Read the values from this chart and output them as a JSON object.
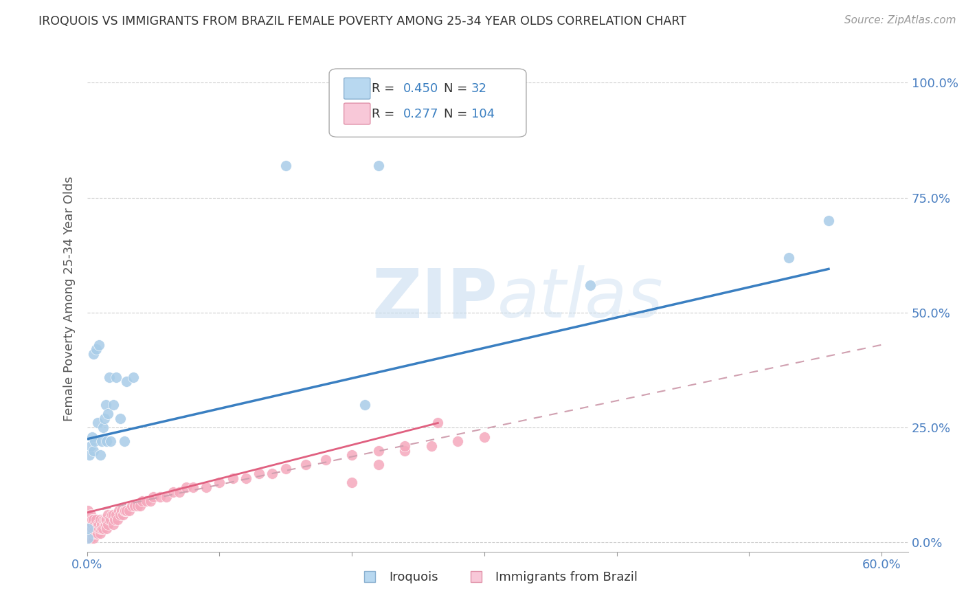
{
  "title": "IROQUOIS VS IMMIGRANTS FROM BRAZIL FEMALE POVERTY AMONG 25-34 YEAR OLDS CORRELATION CHART",
  "source": "Source: ZipAtlas.com",
  "ylabel": "Female Poverty Among 25-34 Year Olds",
  "xlim": [
    0.0,
    0.62
  ],
  "ylim": [
    -0.02,
    1.08
  ],
  "legend1_R": "0.450",
  "legend1_N": "32",
  "legend2_R": "0.277",
  "legend2_N": "104",
  "iroquois_color": "#a8cce8",
  "brazil_color": "#f5a8bc",
  "iroquois_line_color": "#3a7fc1",
  "brazil_line_color": "#e06080",
  "brazil_dash_color": "#d0a0b0",
  "watermark_color": "#dde8f0",
  "background_color": "#ffffff",
  "grid_color": "#cccccc",
  "legend_box_color_1": "#b8d8f0",
  "legend_box_color_2": "#f8c8d8",
  "tick_label_color": "#4a7fc1",
  "axis_label_color": "#555555",
  "iroquois_x": [
    0.001,
    0.001,
    0.002,
    0.003,
    0.004,
    0.005,
    0.005,
    0.006,
    0.007,
    0.008,
    0.009,
    0.01,
    0.011,
    0.012,
    0.013,
    0.014,
    0.015,
    0.016,
    0.017,
    0.018,
    0.02,
    0.022,
    0.025,
    0.028,
    0.03,
    0.035,
    0.15,
    0.21,
    0.22,
    0.38,
    0.53,
    0.56
  ],
  "iroquois_y": [
    0.01,
    0.03,
    0.19,
    0.21,
    0.23,
    0.2,
    0.41,
    0.22,
    0.42,
    0.26,
    0.43,
    0.19,
    0.22,
    0.25,
    0.27,
    0.3,
    0.22,
    0.28,
    0.36,
    0.22,
    0.3,
    0.36,
    0.27,
    0.22,
    0.35,
    0.36,
    0.82,
    0.3,
    0.82,
    0.56,
    0.62,
    0.7
  ],
  "brazil_x": [
    0.0,
    0.0,
    0.001,
    0.001,
    0.001,
    0.001,
    0.001,
    0.001,
    0.001,
    0.001,
    0.002,
    0.002,
    0.002,
    0.002,
    0.002,
    0.003,
    0.003,
    0.003,
    0.003,
    0.003,
    0.003,
    0.004,
    0.004,
    0.004,
    0.004,
    0.005,
    0.005,
    0.005,
    0.005,
    0.006,
    0.006,
    0.006,
    0.007,
    0.007,
    0.007,
    0.008,
    0.008,
    0.008,
    0.009,
    0.009,
    0.01,
    0.01,
    0.01,
    0.011,
    0.011,
    0.012,
    0.012,
    0.013,
    0.013,
    0.014,
    0.014,
    0.015,
    0.015,
    0.016,
    0.016,
    0.017,
    0.018,
    0.019,
    0.02,
    0.02,
    0.021,
    0.022,
    0.023,
    0.024,
    0.025,
    0.026,
    0.027,
    0.028,
    0.029,
    0.03,
    0.032,
    0.034,
    0.036,
    0.038,
    0.04,
    0.042,
    0.045,
    0.048,
    0.05,
    0.055,
    0.06,
    0.065,
    0.07,
    0.075,
    0.08,
    0.09,
    0.1,
    0.11,
    0.12,
    0.13,
    0.14,
    0.15,
    0.165,
    0.18,
    0.2,
    0.22,
    0.24,
    0.26,
    0.28,
    0.3,
    0.2,
    0.22,
    0.24,
    0.265
  ],
  "brazil_y": [
    0.01,
    0.02,
    0.01,
    0.01,
    0.02,
    0.02,
    0.03,
    0.04,
    0.05,
    0.07,
    0.01,
    0.02,
    0.03,
    0.04,
    0.05,
    0.01,
    0.01,
    0.02,
    0.03,
    0.04,
    0.06,
    0.02,
    0.03,
    0.04,
    0.05,
    0.01,
    0.02,
    0.03,
    0.05,
    0.02,
    0.03,
    0.04,
    0.02,
    0.03,
    0.05,
    0.02,
    0.03,
    0.04,
    0.03,
    0.04,
    0.02,
    0.03,
    0.05,
    0.03,
    0.04,
    0.03,
    0.05,
    0.04,
    0.05,
    0.04,
    0.05,
    0.03,
    0.05,
    0.04,
    0.06,
    0.05,
    0.05,
    0.06,
    0.04,
    0.06,
    0.05,
    0.06,
    0.05,
    0.07,
    0.06,
    0.07,
    0.06,
    0.07,
    0.07,
    0.07,
    0.07,
    0.08,
    0.08,
    0.08,
    0.08,
    0.09,
    0.09,
    0.09,
    0.1,
    0.1,
    0.1,
    0.11,
    0.11,
    0.12,
    0.12,
    0.12,
    0.13,
    0.14,
    0.14,
    0.15,
    0.15,
    0.16,
    0.17,
    0.18,
    0.19,
    0.2,
    0.2,
    0.21,
    0.22,
    0.23,
    0.13,
    0.17,
    0.21,
    0.26
  ],
  "iroq_line": [
    0.0,
    0.56,
    0.225,
    0.595
  ],
  "brazil_line_solid": [
    0.0,
    0.265,
    0.065,
    0.26
  ],
  "brazil_line_dash": [
    0.0,
    0.6,
    0.065,
    0.43
  ]
}
